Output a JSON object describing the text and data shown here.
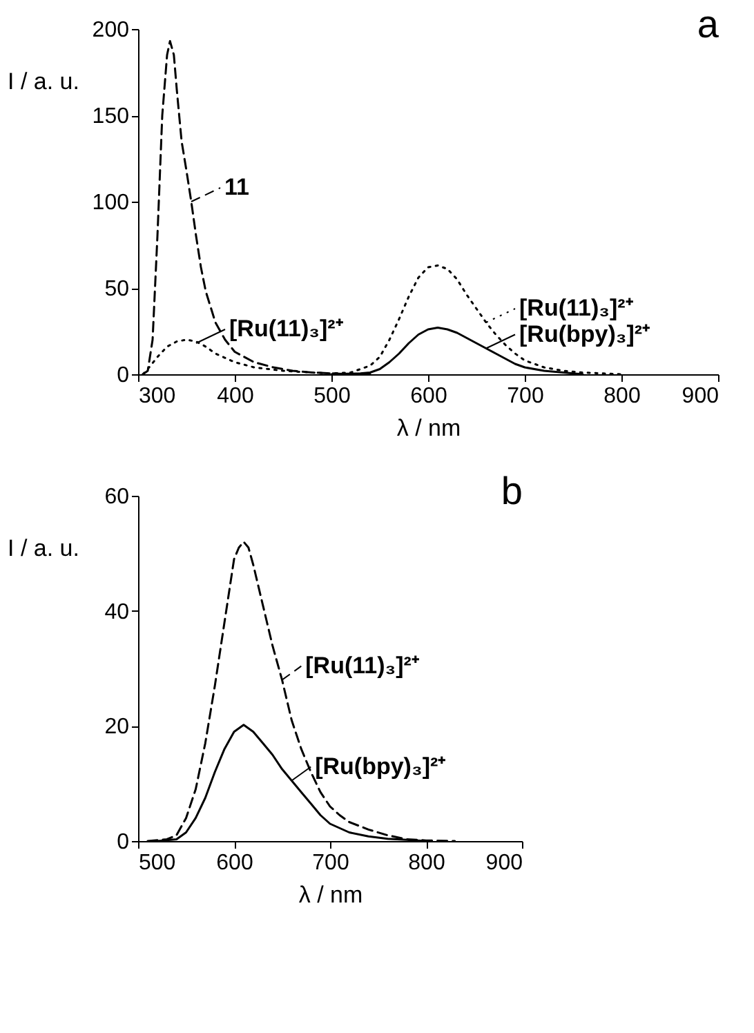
{
  "chart_data": [
    {
      "type": "line",
      "title": "a",
      "xlabel": "λ / nm",
      "ylabel": "I / a. u.",
      "xlim": [
        300,
        900
      ],
      "ylim": [
        0,
        200
      ],
      "xticks": [
        300,
        400,
        500,
        600,
        700,
        800,
        900
      ],
      "yticks": [
        0,
        50,
        100,
        150,
        200
      ],
      "grid": false,
      "legend": "right",
      "annotations": [
        {
          "text": "[Ru(11)₃]²⁺",
          "x": 360,
          "y": 18
        }
      ],
      "series": [
        {
          "name": "11",
          "color": "#000000",
          "line_style": "dashed",
          "x": [
            305,
            310,
            315,
            320,
            325,
            330,
            333,
            337,
            340,
            345,
            350,
            355,
            360,
            365,
            370,
            380,
            390,
            400,
            420,
            440,
            460,
            480,
            500,
            520,
            540
          ],
          "values": [
            0,
            2,
            20,
            80,
            150,
            185,
            193,
            185,
            165,
            135,
            118,
            100,
            80,
            62,
            48,
            30,
            20,
            13,
            7,
            4,
            2,
            1,
            0.5,
            0,
            0
          ]
        },
        {
          "name": "[Ru(11)₃]²⁺",
          "color": "#000000",
          "line_style": "dotted",
          "x": [
            305,
            310,
            320,
            330,
            340,
            350,
            360,
            370,
            380,
            400,
            420,
            450,
            480,
            500,
            520,
            540,
            550,
            560,
            570,
            580,
            590,
            600,
            610,
            620,
            630,
            640,
            650,
            660,
            670,
            680,
            690,
            700,
            720,
            740,
            760,
            780,
            800
          ],
          "values": [
            0,
            3,
            10,
            16,
            19,
            20,
            19,
            16,
            12,
            7,
            4,
            2,
            1,
            0.5,
            1,
            5,
            10,
            20,
            32,
            45,
            56,
            62,
            63,
            61,
            55,
            46,
            38,
            30,
            23,
            17,
            12,
            8,
            4,
            2,
            1,
            0.5,
            0
          ]
        },
        {
          "name": "[Ru(bpy)₃]²⁺",
          "color": "#000000",
          "line_style": "solid",
          "x": [
            500,
            530,
            540,
            550,
            560,
            570,
            580,
            590,
            600,
            610,
            620,
            630,
            640,
            650,
            660,
            670,
            680,
            690,
            700,
            720,
            740,
            760
          ],
          "values": [
            0,
            0.5,
            1,
            3,
            7,
            12,
            18,
            23,
            26,
            27,
            26,
            24,
            21,
            18,
            15,
            12,
            9,
            6,
            4,
            2,
            1,
            0
          ]
        }
      ]
    },
    {
      "type": "line",
      "title": "b",
      "xlabel": "λ / nm",
      "ylabel": "I / a. u.",
      "xlim": [
        500,
        900
      ],
      "ylim": [
        0,
        60
      ],
      "xticks": [
        500,
        600,
        700,
        800,
        900
      ],
      "yticks": [
        0,
        20,
        40,
        60
      ],
      "grid": false,
      "legend": "right",
      "series": [
        {
          "name": "[Ru(11)₃]²⁺",
          "color": "#000000",
          "line_style": "dashed",
          "x": [
            510,
            530,
            540,
            550,
            560,
            570,
            580,
            590,
            600,
            605,
            610,
            615,
            620,
            630,
            640,
            650,
            660,
            670,
            680,
            690,
            700,
            710,
            720,
            740,
            760,
            780,
            800,
            830
          ],
          "values": [
            0,
            0.3,
            1,
            4,
            9,
            17,
            27,
            38,
            49,
            51,
            52,
            51,
            48,
            41,
            34,
            28,
            21,
            16,
            12,
            8.5,
            6,
            4.5,
            3.3,
            2,
            1,
            0.3,
            0.1,
            0
          ]
        },
        {
          "name": "[Ru(bpy)₃]²⁺",
          "color": "#000000",
          "line_style": "solid",
          "x": [
            520,
            540,
            550,
            560,
            570,
            580,
            590,
            600,
            610,
            620,
            630,
            640,
            650,
            660,
            670,
            680,
            690,
            700,
            720,
            740,
            760,
            780,
            800
          ],
          "values": [
            0,
            0.3,
            1.5,
            4,
            7.5,
            12,
            16,
            19,
            20.2,
            19,
            17,
            15,
            12.5,
            10.5,
            8.5,
            6.5,
            4.5,
            3,
            1.5,
            0.8,
            0.4,
            0.2,
            0
          ]
        }
      ]
    }
  ]
}
